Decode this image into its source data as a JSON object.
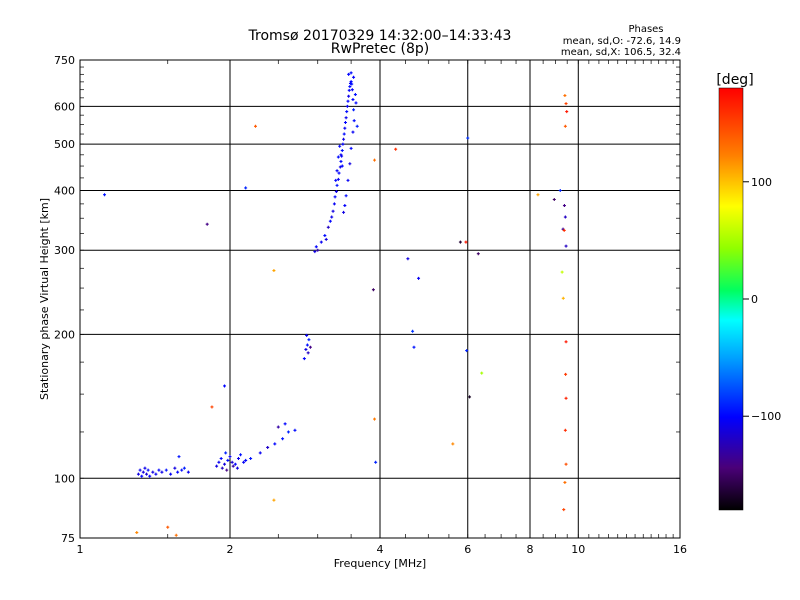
{
  "chart_data": {
    "type": "scatter",
    "title": "Tromsø 20170329 14:32:00–14:33:43",
    "subtitle": "RwPretec (8p)",
    "legend_block": {
      "title": "Phases",
      "line1": "mean, sd,O: -72.6, 14.9",
      "line2": "mean, sd,X: 106.5, 32.4"
    },
    "xlabel": "Frequency [MHz]",
    "ylabel": "Stationary phase Virtual Height [km]",
    "xscale": "log",
    "yscale": "log",
    "xlim": [
      1,
      16
    ],
    "ylim": [
      75,
      750
    ],
    "xticks": [
      1,
      2,
      4,
      6,
      8,
      10,
      16
    ],
    "xtick_labels": [
      "1",
      "2",
      "4",
      "6",
      "8",
      "10",
      "16"
    ],
    "yticks": [
      75,
      100,
      200,
      300,
      400,
      500,
      600,
      750
    ],
    "ytick_labels": [
      "75",
      "100",
      "200",
      "300",
      "400",
      "500",
      "600",
      "750"
    ],
    "grid": true,
    "colorbar": {
      "label": "[deg]",
      "range": [
        -180,
        180
      ],
      "ticks": [
        100,
        0,
        -100
      ],
      "tick_labels": [
        "100",
        "0",
        "−100"
      ]
    },
    "points": [
      [
        1.31,
        102,
        -110
      ],
      [
        1.32,
        104,
        -105
      ],
      [
        1.33,
        101,
        -100
      ],
      [
        1.34,
        103,
        -112
      ],
      [
        1.35,
        105,
        -108
      ],
      [
        1.36,
        102,
        -115
      ],
      [
        1.37,
        104,
        -98
      ],
      [
        1.38,
        101,
        -102
      ],
      [
        1.4,
        103,
        -110
      ],
      [
        1.42,
        102,
        -105
      ],
      [
        1.44,
        104,
        -100
      ],
      [
        1.46,
        103,
        -108
      ],
      [
        1.49,
        104,
        -96
      ],
      [
        1.52,
        102,
        -104
      ],
      [
        1.55,
        105,
        -110
      ],
      [
        1.57,
        103,
        -100
      ],
      [
        1.6,
        104,
        -98
      ],
      [
        1.62,
        105,
        -92
      ],
      [
        1.65,
        103,
        -105
      ],
      [
        1.58,
        111,
        -95
      ],
      [
        1.88,
        106,
        -110
      ],
      [
        1.9,
        108,
        -105
      ],
      [
        1.92,
        110,
        -100
      ],
      [
        1.95,
        107,
        -112
      ],
      [
        1.98,
        109,
        -98
      ],
      [
        2.0,
        111,
        -105
      ],
      [
        2.02,
        108,
        -115
      ],
      [
        2.05,
        107,
        -102
      ],
      [
        2.08,
        110,
        -108
      ],
      [
        2.1,
        112,
        -96
      ],
      [
        2.13,
        108,
        -104
      ],
      [
        2.15,
        109,
        -100
      ],
      [
        1.93,
        105,
        -120
      ],
      [
        1.97,
        104,
        -140
      ],
      [
        2.03,
        106,
        -130
      ],
      [
        2.07,
        105,
        -110
      ],
      [
        1.96,
        113,
        -90
      ],
      [
        2.2,
        110,
        -95
      ],
      [
        2.3,
        113,
        -105
      ],
      [
        2.38,
        116,
        -118
      ],
      [
        2.46,
        118,
        -100
      ],
      [
        2.55,
        121,
        -95
      ],
      [
        2.62,
        125,
        -90
      ],
      [
        2.5,
        128,
        -130
      ],
      [
        2.58,
        130,
        -100
      ],
      [
        2.7,
        126,
        -98
      ],
      [
        1.95,
        156,
        -100
      ],
      [
        2.82,
        178,
        -100
      ],
      [
        2.84,
        186,
        -110
      ],
      [
        2.86,
        190,
        -96
      ],
      [
        2.88,
        195,
        -92
      ],
      [
        2.85,
        199,
        -105
      ],
      [
        2.87,
        183,
        -120
      ],
      [
        2.9,
        188,
        -140
      ],
      [
        2.96,
        298,
        -110
      ],
      [
        2.98,
        305,
        -100
      ],
      [
        3.0,
        300,
        -130
      ],
      [
        3.05,
        312,
        -105
      ],
      [
        3.1,
        322,
        -98
      ],
      [
        3.12,
        316,
        -112
      ],
      [
        3.15,
        335,
        -120
      ],
      [
        3.18,
        345,
        -100
      ],
      [
        3.2,
        352,
        -108
      ],
      [
        3.22,
        362,
        -110
      ],
      [
        3.24,
        375,
        -104
      ],
      [
        3.25,
        388,
        -100
      ],
      [
        3.27,
        398,
        -110
      ],
      [
        3.28,
        410,
        -96
      ],
      [
        3.3,
        422,
        -105
      ],
      [
        3.31,
        435,
        -100
      ],
      [
        3.33,
        448,
        -108
      ],
      [
        3.34,
        460,
        -98
      ],
      [
        3.35,
        472,
        -104
      ],
      [
        3.36,
        485,
        -96
      ],
      [
        3.37,
        500,
        -102
      ],
      [
        3.38,
        512,
        -110
      ],
      [
        3.39,
        525,
        -98
      ],
      [
        3.4,
        540,
        -104
      ],
      [
        3.41,
        555,
        -100
      ],
      [
        3.42,
        568,
        -106
      ],
      [
        3.43,
        585,
        -98
      ],
      [
        3.44,
        600,
        -104
      ],
      [
        3.45,
        615,
        -100
      ],
      [
        3.46,
        630,
        -108
      ],
      [
        3.47,
        648,
        -102
      ],
      [
        3.48,
        660,
        -98
      ],
      [
        3.49,
        670,
        -104
      ],
      [
        3.5,
        676,
        -100
      ],
      [
        3.51,
        668,
        -96
      ],
      [
        3.52,
        650,
        -104
      ],
      [
        3.53,
        620,
        -100
      ],
      [
        3.54,
        590,
        -92
      ],
      [
        3.55,
        560,
        -98
      ],
      [
        3.53,
        530,
        -104
      ],
      [
        3.5,
        490,
        -100
      ],
      [
        3.48,
        455,
        -110
      ],
      [
        3.45,
        420,
        -104
      ],
      [
        3.42,
        390,
        -98
      ],
      [
        3.4,
        372,
        -102
      ],
      [
        3.38,
        360,
        -110
      ],
      [
        3.36,
        450,
        -100
      ],
      [
        3.34,
        475,
        -106
      ],
      [
        3.32,
        495,
        -100
      ],
      [
        3.3,
        470,
        -98
      ],
      [
        3.28,
        440,
        -104
      ],
      [
        3.26,
        420,
        -100
      ],
      [
        3.46,
        700,
        -100
      ],
      [
        3.5,
        705,
        -98
      ],
      [
        3.54,
        690,
        -102
      ],
      [
        3.57,
        635,
        -96
      ],
      [
        3.6,
        545,
        -92
      ],
      [
        3.58,
        610,
        -100
      ],
      [
        1.12,
        392,
        -95
      ],
      [
        1.8,
        340,
        -140
      ],
      [
        2.15,
        405,
        -90
      ],
      [
        3.88,
        248,
        -150
      ],
      [
        3.92,
        108,
        -90
      ],
      [
        4.55,
        288,
        -110
      ],
      [
        4.78,
        262,
        -105
      ],
      [
        4.65,
        203,
        -85
      ],
      [
        4.68,
        188,
        -95
      ],
      [
        5.8,
        312,
        -165
      ],
      [
        6.0,
        515,
        -85
      ],
      [
        5.97,
        185,
        -90
      ],
      [
        6.05,
        148,
        -170
      ],
      [
        6.3,
        295,
        -150
      ],
      [
        8.95,
        383,
        -150
      ],
      [
        9.2,
        400,
        -90
      ],
      [
        9.38,
        372,
        -140
      ],
      [
        9.42,
        352,
        -120
      ],
      [
        9.32,
        332,
        -135
      ],
      [
        9.45,
        306,
        -120
      ],
      [
        1.3,
        77,
        120
      ],
      [
        1.5,
        79,
        140
      ],
      [
        1.56,
        76,
        130
      ],
      [
        1.84,
        141,
        150
      ],
      [
        2.25,
        545,
        140
      ],
      [
        2.45,
        272,
        110
      ],
      [
        2.45,
        90,
        110
      ],
      [
        3.9,
        463,
        130
      ],
      [
        3.9,
        133,
        125
      ],
      [
        4.3,
        488,
        160
      ],
      [
        5.6,
        118,
        120
      ],
      [
        5.95,
        312,
        170
      ],
      [
        6.4,
        166,
        50
      ],
      [
        8.3,
        392,
        110
      ],
      [
        9.28,
        270,
        60
      ],
      [
        9.33,
        238,
        105
      ],
      [
        9.4,
        632,
        130
      ],
      [
        9.45,
        608,
        150
      ],
      [
        9.48,
        585,
        170
      ],
      [
        9.42,
        545,
        140
      ],
      [
        9.37,
        330,
        160
      ],
      [
        9.45,
        193,
        170
      ],
      [
        9.43,
        165,
        155
      ],
      [
        9.45,
        147,
        165
      ],
      [
        9.42,
        126,
        160
      ],
      [
        9.45,
        107,
        145
      ],
      [
        9.4,
        98,
        130
      ],
      [
        9.35,
        86,
        150
      ]
    ]
  }
}
